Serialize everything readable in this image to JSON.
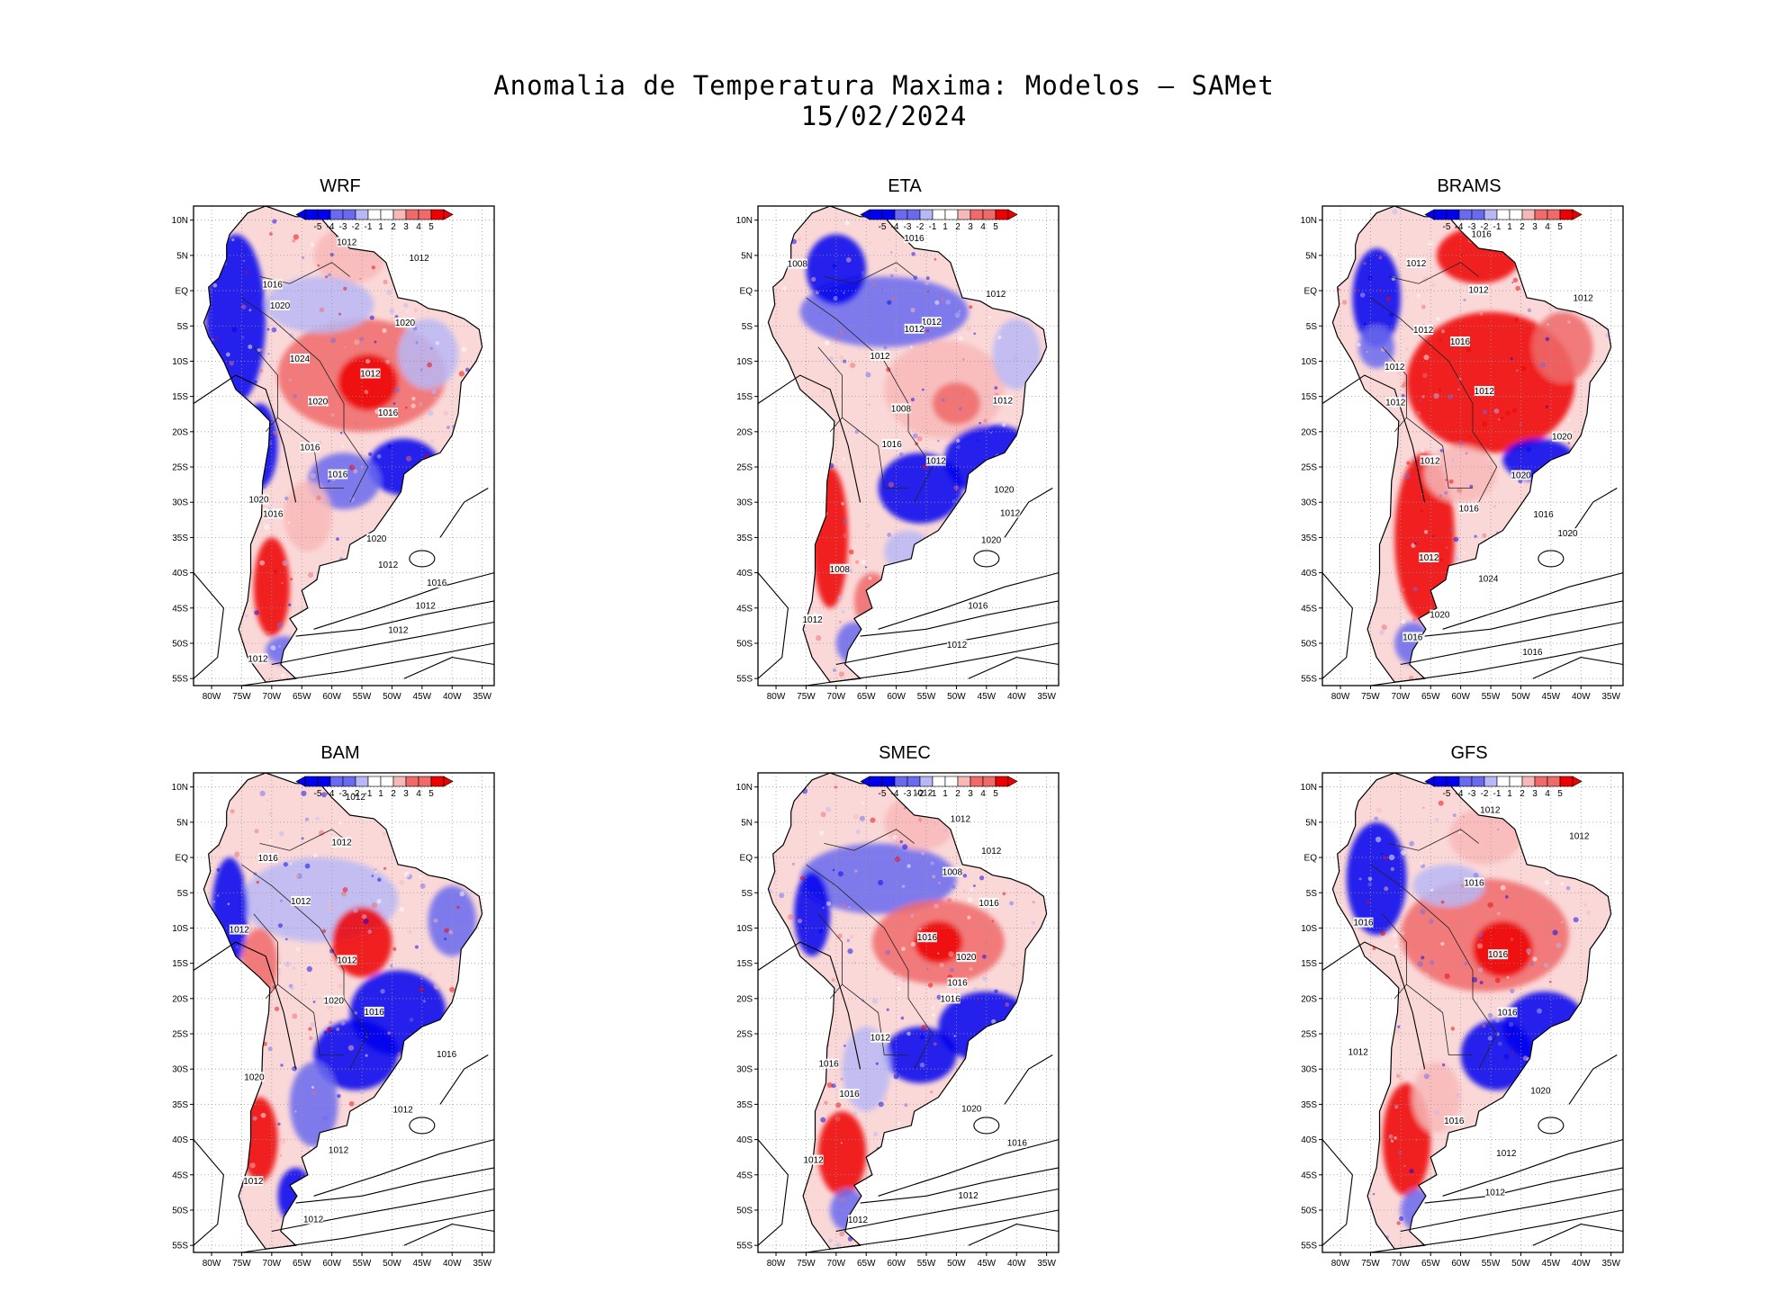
{
  "title": "Anomalia de Temperatura Maxima: Modelos — SAMet",
  "date": "15/02/2024",
  "colors": {
    "cold_strong": "#0000ee",
    "cold_mid": "#6a6af0",
    "cold_light": "#b8b8f6",
    "neutral": "#ffffff",
    "warm_light": "#f8b8b8",
    "warm_mid": "#f06a6a",
    "warm_strong": "#ee0000",
    "contour": "#000000"
  },
  "colorbar_labels": [
    "-5",
    "-4",
    "-3",
    "-2",
    "-1",
    "1",
    "2",
    "3",
    "4",
    "5"
  ],
  "lat_labels": [
    "10N",
    "5N",
    "EQ",
    "5S",
    "10S",
    "15S",
    "20S",
    "25S",
    "30S",
    "35S",
    "40S",
    "45S",
    "50S",
    "55S"
  ],
  "lon_labels": [
    "80W",
    "75W",
    "70W",
    "65W",
    "60W",
    "55W",
    "50W",
    "45W",
    "40W",
    "35W"
  ],
  "panels": [
    {
      "name": "WRF",
      "isobars": [
        "1012",
        "1012",
        "1016",
        "1020",
        "1020",
        "1024",
        "1012",
        "1020",
        "1016",
        "1016",
        "1016",
        "1020",
        "1016",
        "1020",
        "1012",
        "1016",
        "1012",
        "1012",
        "1012"
      ]
    },
    {
      "name": "ETA",
      "isobars": [
        "1016",
        "1008",
        "1012",
        "1012",
        "1012",
        "1012",
        "1012",
        "1008",
        "1016",
        "1012",
        "1020",
        "1012",
        "1020",
        "1008",
        "1016",
        "1012",
        "1012"
      ]
    },
    {
      "name": "BRAMS",
      "isobars": [
        "1016",
        "1012",
        "1012",
        "1012",
        "1012",
        "1016",
        "1012",
        "1012",
        "1012",
        "1020",
        "1012",
        "1020",
        "1016",
        "1016",
        "1020",
        "1012",
        "1024",
        "1020",
        "1016",
        "1016"
      ]
    },
    {
      "name": "BAM",
      "isobars": [
        "1012",
        "1012",
        "1016",
        "1012",
        "1012",
        "1012",
        "1020",
        "1016",
        "1016",
        "1020",
        "1012",
        "1012",
        "1012",
        "1012"
      ]
    },
    {
      "name": "SMEC",
      "isobars": [
        "1012",
        "1012",
        "1012",
        "1008",
        "1016",
        "1016",
        "1020",
        "1016",
        "1016",
        "1012",
        "1016",
        "1016",
        "1020",
        "1016",
        "1012",
        "1012",
        "1012"
      ]
    },
    {
      "name": "GFS",
      "isobars": [
        "1012",
        "1012",
        "1016",
        "1016",
        "1016",
        "1016",
        "1012",
        "1020",
        "1016",
        "1012",
        "1012"
      ]
    }
  ]
}
